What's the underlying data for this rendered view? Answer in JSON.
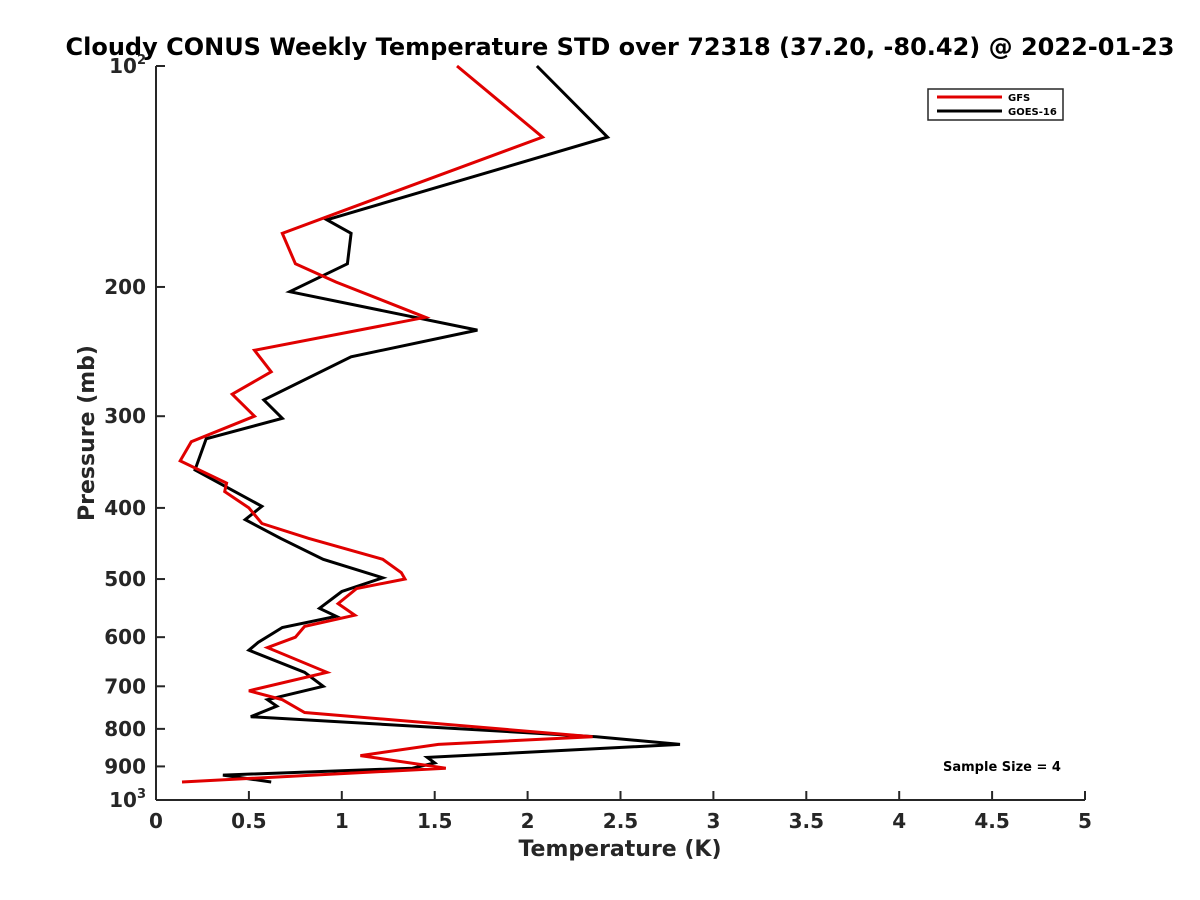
{
  "chart_data": {
    "type": "line",
    "title": "Cloudy CONUS Weekly Temperature STD over 72318 (37.20, -80.42) @ 2022-01-23",
    "xlabel": "Temperature (K)",
    "ylabel": "Pressure (mb)",
    "xlim": [
      0,
      5
    ],
    "ylim": [
      100,
      1000
    ],
    "yscale": "log",
    "y_reversed": true,
    "grid": false,
    "legend_position": "top-right",
    "x_ticks": [
      {
        "value": 0,
        "label": "0"
      },
      {
        "value": 0.5,
        "label": "0.5"
      },
      {
        "value": 1,
        "label": "1"
      },
      {
        "value": 1.5,
        "label": "1.5"
      },
      {
        "value": 2,
        "label": "2"
      },
      {
        "value": 2.5,
        "label": "2.5"
      },
      {
        "value": 3,
        "label": "3"
      },
      {
        "value": 3.5,
        "label": "3.5"
      },
      {
        "value": 4,
        "label": "4"
      },
      {
        "value": 4.5,
        "label": "4.5"
      },
      {
        "value": 5,
        "label": "5"
      }
    ],
    "y_ticks": [
      {
        "value": 100,
        "base": "10",
        "exp": "2"
      },
      {
        "value": 200,
        "base": "200",
        "exp": ""
      },
      {
        "value": 300,
        "base": "300",
        "exp": ""
      },
      {
        "value": 400,
        "base": "400",
        "exp": ""
      },
      {
        "value": 500,
        "base": "500",
        "exp": ""
      },
      {
        "value": 600,
        "base": "600",
        "exp": ""
      },
      {
        "value": 700,
        "base": "700",
        "exp": ""
      },
      {
        "value": 800,
        "base": "800",
        "exp": ""
      },
      {
        "value": 900,
        "base": "900",
        "exp": ""
      },
      {
        "value": 1000,
        "base": "10",
        "exp": "3"
      }
    ],
    "series": [
      {
        "name": "GFS",
        "color": "#e00000",
        "points": [
          [
            1.62,
            100
          ],
          [
            2.08,
            125
          ],
          [
            1.05,
            156
          ],
          [
            0.68,
            169
          ],
          [
            0.75,
            186
          ],
          [
            0.97,
            197
          ],
          [
            1.45,
            220
          ],
          [
            0.53,
            244
          ],
          [
            0.62,
            261
          ],
          [
            0.41,
            280
          ],
          [
            0.53,
            300
          ],
          [
            0.19,
            325
          ],
          [
            0.13,
            345
          ],
          [
            0.38,
            370
          ],
          [
            0.37,
            380
          ],
          [
            0.5,
            400
          ],
          [
            0.57,
            420
          ],
          [
            0.82,
            440
          ],
          [
            1.22,
            470
          ],
          [
            1.32,
            490
          ],
          [
            1.34,
            500
          ],
          [
            1.08,
            515
          ],
          [
            0.98,
            540
          ],
          [
            1.07,
            560
          ],
          [
            0.8,
            580
          ],
          [
            0.75,
            600
          ],
          [
            0.6,
            620
          ],
          [
            0.92,
            670
          ],
          [
            0.5,
            710
          ],
          [
            0.68,
            730
          ],
          [
            0.8,
            760
          ],
          [
            2.35,
            820
          ],
          [
            1.52,
            840
          ],
          [
            1.1,
            870
          ],
          [
            1.56,
            905
          ],
          [
            0.14,
            945
          ]
        ]
      },
      {
        "name": "GOES-16",
        "color": "#000000",
        "points": [
          [
            2.05,
            100
          ],
          [
            2.43,
            125
          ],
          [
            0.92,
            162
          ],
          [
            1.05,
            169
          ],
          [
            1.03,
            186
          ],
          [
            0.72,
            203
          ],
          [
            1.73,
            229
          ],
          [
            1.05,
            249
          ],
          [
            0.58,
            285
          ],
          [
            0.68,
            302
          ],
          [
            0.27,
            322
          ],
          [
            0.21,
            355
          ],
          [
            0.57,
            398
          ],
          [
            0.48,
            415
          ],
          [
            0.67,
            440
          ],
          [
            0.9,
            470
          ],
          [
            1.22,
            498
          ],
          [
            1.0,
            520
          ],
          [
            0.88,
            548
          ],
          [
            0.97,
            562
          ],
          [
            0.68,
            582
          ],
          [
            0.55,
            610
          ],
          [
            0.5,
            625
          ],
          [
            0.8,
            670
          ],
          [
            0.9,
            700
          ],
          [
            0.6,
            730
          ],
          [
            0.65,
            745
          ],
          [
            0.51,
            770
          ],
          [
            2.37,
            820
          ],
          [
            2.82,
            840
          ],
          [
            1.46,
            875
          ],
          [
            1.5,
            890
          ],
          [
            1.38,
            905
          ],
          [
            0.36,
            925
          ],
          [
            0.62,
            945
          ]
        ]
      }
    ],
    "annotations": [
      {
        "text": "Sample Size = 4",
        "position": "bottom-right"
      }
    ]
  }
}
